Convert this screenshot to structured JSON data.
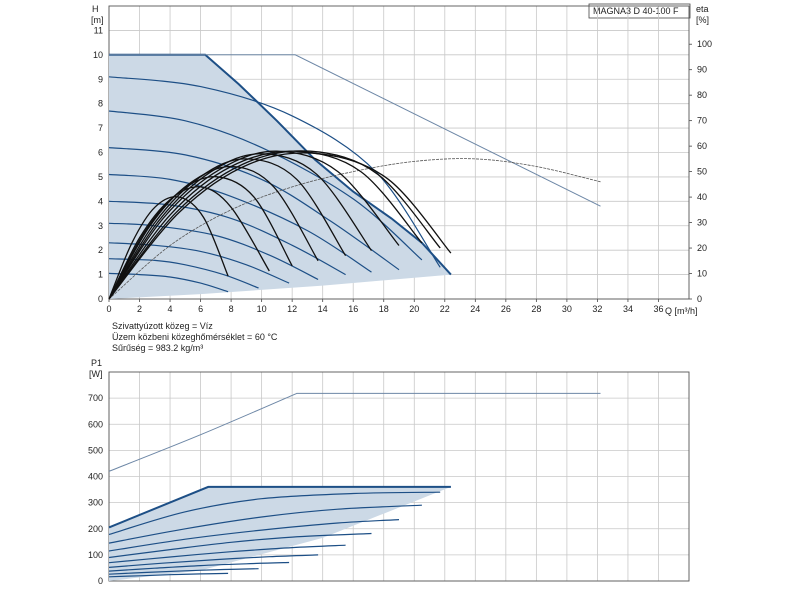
{
  "chart_data": [
    {
      "type": "line",
      "title": "",
      "model_label": "MAGNA3 D 40-100 F",
      "ylabel_left": "H",
      "ylabel_left_unit": "[m]",
      "ylabel_right": "eta",
      "ylabel_right_unit": "[%]",
      "xlabel": "Q [m³/h]",
      "xlim": [
        0,
        38
      ],
      "ylim_left": [
        0,
        12
      ],
      "ylim_right": [
        0,
        115
      ],
      "x_ticks": [
        "0",
        "2",
        "4",
        "6",
        "8",
        "10",
        "12",
        "14",
        "16",
        "18",
        "20",
        "22",
        "24",
        "26",
        "28",
        "30",
        "32",
        "34",
        "36"
      ],
      "y_ticks_left": [
        "0",
        "1",
        "2",
        "3",
        "4",
        "5",
        "6",
        "7",
        "8",
        "9",
        "10",
        "11"
      ],
      "y_ticks_right": [
        "0",
        "10",
        "20",
        "30",
        "40",
        "50",
        "60",
        "70",
        "80",
        "90",
        "100"
      ],
      "grid": true,
      "notes": [
        "Szivattyúzott közeg = Víz",
        "Üzem közbeni közeghőmérséklet = 60 °C",
        "Sűrűség = 983.2 kg/m³"
      ],
      "colors": {
        "envelope_fill": "#ccd9e6",
        "curve": "#1d4f86",
        "efficiency": "#111111",
        "single_pump": "#6d87a6"
      },
      "envelope": [
        [
          0,
          10
        ],
        [
          6.3,
          10
        ],
        [
          8.5,
          8.8
        ],
        [
          11,
          7.3
        ],
        [
          13.5,
          5.7
        ],
        [
          16,
          4.4
        ],
        [
          18.5,
          3.3
        ],
        [
          20.5,
          2.3
        ],
        [
          22.4,
          1
        ]
      ],
      "envelope_bottom": [
        [
          22.4,
          1
        ],
        [
          14,
          0.55
        ],
        [
          6,
          0.2
        ],
        [
          0,
          0
        ]
      ],
      "series": [
        {
          "role": "max",
          "x": [
            0,
            6.3,
            8.5,
            11,
            13.5,
            16,
            18.5,
            20.5,
            22.4
          ],
          "y": [
            10,
            10,
            8.8,
            7.3,
            5.7,
            4.4,
            3.3,
            2.3,
            1
          ]
        },
        {
          "role": "curve",
          "x": [
            0,
            6,
            12,
            17.5,
            21.7
          ],
          "y": [
            9.1,
            8.7,
            7.5,
            5.2,
            1.3
          ]
        },
        {
          "role": "curve",
          "x": [
            0,
            5,
            10,
            16,
            20.5
          ],
          "y": [
            7.7,
            7.3,
            6.2,
            4.1,
            1.6
          ]
        },
        {
          "role": "curve",
          "x": [
            0,
            5,
            10,
            14.5,
            19
          ],
          "y": [
            6.2,
            5.9,
            4.9,
            3.2,
            1.2
          ]
        },
        {
          "role": "curve",
          "x": [
            0,
            4,
            8,
            13,
            17.2
          ],
          "y": [
            5.1,
            4.9,
            4.2,
            2.8,
            1.1
          ]
        },
        {
          "role": "curve",
          "x": [
            0,
            4,
            8,
            12,
            15.5
          ],
          "y": [
            4,
            3.85,
            3.3,
            2.2,
            1
          ]
        },
        {
          "role": "curve",
          "x": [
            0,
            3,
            7,
            10.5,
            13.7
          ],
          "y": [
            3.1,
            3,
            2.6,
            1.8,
            0.8
          ]
        },
        {
          "role": "curve",
          "x": [
            0,
            3,
            6,
            9,
            11.8
          ],
          "y": [
            2.3,
            2.2,
            1.95,
            1.4,
            0.65
          ]
        },
        {
          "role": "curve",
          "x": [
            0,
            3,
            5,
            7.5,
            9.8
          ],
          "y": [
            1.65,
            1.58,
            1.4,
            1,
            0.45
          ]
        },
        {
          "role": "curve",
          "x": [
            0,
            2,
            4,
            6,
            7.8
          ],
          "y": [
            1.05,
            1,
            0.9,
            0.65,
            0.3
          ]
        },
        {
          "role": "single_pump_max",
          "x": [
            0,
            12.2,
            32.2
          ],
          "y": [
            10,
            10,
            3.8
          ]
        },
        {
          "role": "single_pump_efficiency",
          "axis": "right",
          "x": [
            0,
            4,
            8,
            12,
            16,
            20,
            24,
            28,
            32.2
          ],
          "y": [
            0,
            21,
            35,
            44,
            50,
            54,
            55,
            52,
            46
          ]
        },
        {
          "role": "efficiency",
          "axis": "right",
          "x": [
            0,
            1.5,
            3,
            4.6,
            6.2,
            7.8
          ],
          "y": [
            0,
            22,
            36,
            40,
            32,
            9
          ]
        },
        {
          "role": "efficiency",
          "axis": "right",
          "x": [
            0,
            2,
            4,
            6,
            8,
            10.5
          ],
          "y": [
            0,
            24,
            39,
            44,
            36,
            11
          ]
        },
        {
          "role": "efficiency",
          "axis": "right",
          "x": [
            0,
            2.3,
            4.6,
            7,
            9.5,
            12
          ],
          "y": [
            0,
            26,
            42,
            48,
            40,
            13
          ]
        },
        {
          "role": "efficiency",
          "axis": "right",
          "x": [
            0,
            2.6,
            5.2,
            8,
            10.8,
            13.7
          ],
          "y": [
            0,
            28,
            45,
            52,
            44,
            15
          ]
        },
        {
          "role": "efficiency",
          "axis": "right",
          "x": [
            0,
            3,
            6,
            9,
            12.3,
            15.5
          ],
          "y": [
            0,
            30,
            48,
            55,
            47,
            17
          ]
        },
        {
          "role": "efficiency",
          "axis": "right",
          "x": [
            0,
            3.3,
            6.7,
            10,
            13.6,
            17.2
          ],
          "y": [
            0,
            31,
            50,
            57,
            49,
            19
          ]
        },
        {
          "role": "efficiency",
          "axis": "right",
          "x": [
            0,
            3.6,
            7.3,
            11,
            15,
            19
          ],
          "y": [
            0,
            32,
            51,
            58,
            50,
            21
          ]
        },
        {
          "role": "efficiency",
          "axis": "right",
          "x": [
            0,
            4,
            8,
            12.2,
            16.5,
            20.5
          ],
          "y": [
            0,
            33,
            52,
            58,
            50,
            22
          ]
        },
        {
          "role": "efficiency",
          "axis": "right",
          "x": [
            0,
            4.4,
            8.8,
            13.2,
            17.6,
            21.7
          ],
          "y": [
            0,
            34,
            53,
            58,
            49,
            20
          ]
        },
        {
          "role": "efficiency",
          "axis": "right",
          "x": [
            0,
            4.6,
            9.2,
            13.8,
            18.3,
            22.4
          ],
          "y": [
            0,
            34,
            53,
            57,
            47,
            18
          ]
        }
      ]
    },
    {
      "type": "line",
      "title": "",
      "ylabel": "P1",
      "ylabel_unit": "[W]",
      "xlim": [
        0,
        38
      ],
      "ylim": [
        0,
        800
      ],
      "y_ticks": [
        "0",
        "100",
        "200",
        "300",
        "400",
        "500",
        "600",
        "700"
      ],
      "grid": true,
      "envelope": [
        [
          0,
          205
        ],
        [
          6.5,
          360
        ],
        [
          22.4,
          360
        ],
        [
          14,
          165
        ],
        [
          6,
          40
        ],
        [
          0,
          0
        ]
      ],
      "series": [
        {
          "role": "single_pump",
          "x": [
            0,
            6,
            12.3,
            32.2
          ],
          "y": [
            420,
            560,
            718,
            718
          ]
        },
        {
          "role": "max",
          "x": [
            0,
            6.5,
            22.4
          ],
          "y": [
            205,
            360,
            360
          ]
        },
        {
          "role": "curve",
          "x": [
            0,
            5,
            10,
            16,
            21.7
          ],
          "y": [
            178,
            265,
            315,
            335,
            340
          ]
        },
        {
          "role": "curve",
          "x": [
            0,
            5,
            10,
            15,
            20.5
          ],
          "y": [
            145,
            200,
            245,
            275,
            290
          ]
        },
        {
          "role": "curve",
          "x": [
            0,
            5,
            10,
            15,
            19
          ],
          "y": [
            115,
            160,
            195,
            222,
            235
          ]
        },
        {
          "role": "curve",
          "x": [
            0,
            4,
            8,
            12,
            17.2
          ],
          "y": [
            90,
            120,
            148,
            168,
            182
          ]
        },
        {
          "role": "curve",
          "x": [
            0,
            4,
            8,
            12,
            15.5
          ],
          "y": [
            70,
            92,
            112,
            128,
            137
          ]
        },
        {
          "role": "curve",
          "x": [
            0,
            3.5,
            7,
            10.5,
            13.7
          ],
          "y": [
            52,
            68,
            82,
            93,
            100
          ]
        },
        {
          "role": "curve",
          "x": [
            0,
            3,
            6,
            9,
            11.8
          ],
          "y": [
            38,
            49,
            59,
            66,
            71
          ]
        },
        {
          "role": "curve",
          "x": [
            0,
            2.5,
            5,
            7.5,
            9.8
          ],
          "y": [
            26,
            33,
            39,
            44,
            47
          ]
        },
        {
          "role": "curve",
          "x": [
            0,
            2,
            4,
            6,
            7.8
          ],
          "y": [
            16,
            20,
            24,
            27,
            29
          ]
        }
      ]
    }
  ]
}
